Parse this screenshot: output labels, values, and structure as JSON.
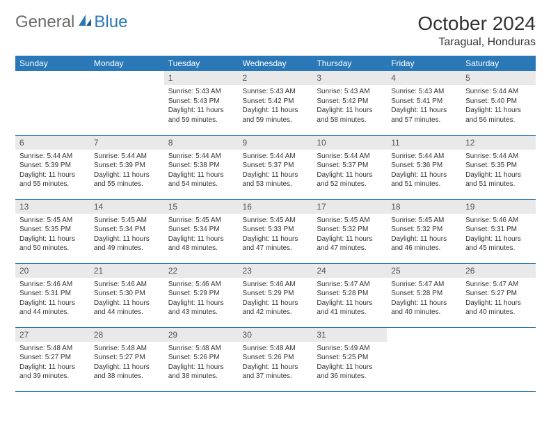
{
  "logo": {
    "part1": "General",
    "part2": "Blue"
  },
  "title": "October 2024",
  "location": "Taragual, Honduras",
  "day_headers": [
    "Sunday",
    "Monday",
    "Tuesday",
    "Wednesday",
    "Thursday",
    "Friday",
    "Saturday"
  ],
  "colors": {
    "header_bg": "#2a78b8",
    "header_text": "#ffffff",
    "daynum_bg": "#e9e9e9",
    "row_border": "#2a78b8",
    "logo_gray": "#6a6a6a",
    "logo_blue": "#2a78b8"
  },
  "weeks": [
    [
      null,
      null,
      {
        "n": "1",
        "sunrise": "Sunrise: 5:43 AM",
        "sunset": "Sunset: 5:43 PM",
        "daylight": "Daylight: 11 hours and 59 minutes."
      },
      {
        "n": "2",
        "sunrise": "Sunrise: 5:43 AM",
        "sunset": "Sunset: 5:42 PM",
        "daylight": "Daylight: 11 hours and 59 minutes."
      },
      {
        "n": "3",
        "sunrise": "Sunrise: 5:43 AM",
        "sunset": "Sunset: 5:42 PM",
        "daylight": "Daylight: 11 hours and 58 minutes."
      },
      {
        "n": "4",
        "sunrise": "Sunrise: 5:43 AM",
        "sunset": "Sunset: 5:41 PM",
        "daylight": "Daylight: 11 hours and 57 minutes."
      },
      {
        "n": "5",
        "sunrise": "Sunrise: 5:44 AM",
        "sunset": "Sunset: 5:40 PM",
        "daylight": "Daylight: 11 hours and 56 minutes."
      }
    ],
    [
      {
        "n": "6",
        "sunrise": "Sunrise: 5:44 AM",
        "sunset": "Sunset: 5:39 PM",
        "daylight": "Daylight: 11 hours and 55 minutes."
      },
      {
        "n": "7",
        "sunrise": "Sunrise: 5:44 AM",
        "sunset": "Sunset: 5:39 PM",
        "daylight": "Daylight: 11 hours and 55 minutes."
      },
      {
        "n": "8",
        "sunrise": "Sunrise: 5:44 AM",
        "sunset": "Sunset: 5:38 PM",
        "daylight": "Daylight: 11 hours and 54 minutes."
      },
      {
        "n": "9",
        "sunrise": "Sunrise: 5:44 AM",
        "sunset": "Sunset: 5:37 PM",
        "daylight": "Daylight: 11 hours and 53 minutes."
      },
      {
        "n": "10",
        "sunrise": "Sunrise: 5:44 AM",
        "sunset": "Sunset: 5:37 PM",
        "daylight": "Daylight: 11 hours and 52 minutes."
      },
      {
        "n": "11",
        "sunrise": "Sunrise: 5:44 AM",
        "sunset": "Sunset: 5:36 PM",
        "daylight": "Daylight: 11 hours and 51 minutes."
      },
      {
        "n": "12",
        "sunrise": "Sunrise: 5:44 AM",
        "sunset": "Sunset: 5:35 PM",
        "daylight": "Daylight: 11 hours and 51 minutes."
      }
    ],
    [
      {
        "n": "13",
        "sunrise": "Sunrise: 5:45 AM",
        "sunset": "Sunset: 5:35 PM",
        "daylight": "Daylight: 11 hours and 50 minutes."
      },
      {
        "n": "14",
        "sunrise": "Sunrise: 5:45 AM",
        "sunset": "Sunset: 5:34 PM",
        "daylight": "Daylight: 11 hours and 49 minutes."
      },
      {
        "n": "15",
        "sunrise": "Sunrise: 5:45 AM",
        "sunset": "Sunset: 5:34 PM",
        "daylight": "Daylight: 11 hours and 48 minutes."
      },
      {
        "n": "16",
        "sunrise": "Sunrise: 5:45 AM",
        "sunset": "Sunset: 5:33 PM",
        "daylight": "Daylight: 11 hours and 47 minutes."
      },
      {
        "n": "17",
        "sunrise": "Sunrise: 5:45 AM",
        "sunset": "Sunset: 5:32 PM",
        "daylight": "Daylight: 11 hours and 47 minutes."
      },
      {
        "n": "18",
        "sunrise": "Sunrise: 5:45 AM",
        "sunset": "Sunset: 5:32 PM",
        "daylight": "Daylight: 11 hours and 46 minutes."
      },
      {
        "n": "19",
        "sunrise": "Sunrise: 5:46 AM",
        "sunset": "Sunset: 5:31 PM",
        "daylight": "Daylight: 11 hours and 45 minutes."
      }
    ],
    [
      {
        "n": "20",
        "sunrise": "Sunrise: 5:46 AM",
        "sunset": "Sunset: 5:31 PM",
        "daylight": "Daylight: 11 hours and 44 minutes."
      },
      {
        "n": "21",
        "sunrise": "Sunrise: 5:46 AM",
        "sunset": "Sunset: 5:30 PM",
        "daylight": "Daylight: 11 hours and 44 minutes."
      },
      {
        "n": "22",
        "sunrise": "Sunrise: 5:46 AM",
        "sunset": "Sunset: 5:29 PM",
        "daylight": "Daylight: 11 hours and 43 minutes."
      },
      {
        "n": "23",
        "sunrise": "Sunrise: 5:46 AM",
        "sunset": "Sunset: 5:29 PM",
        "daylight": "Daylight: 11 hours and 42 minutes."
      },
      {
        "n": "24",
        "sunrise": "Sunrise: 5:47 AM",
        "sunset": "Sunset: 5:28 PM",
        "daylight": "Daylight: 11 hours and 41 minutes."
      },
      {
        "n": "25",
        "sunrise": "Sunrise: 5:47 AM",
        "sunset": "Sunset: 5:28 PM",
        "daylight": "Daylight: 11 hours and 40 minutes."
      },
      {
        "n": "26",
        "sunrise": "Sunrise: 5:47 AM",
        "sunset": "Sunset: 5:27 PM",
        "daylight": "Daylight: 11 hours and 40 minutes."
      }
    ],
    [
      {
        "n": "27",
        "sunrise": "Sunrise: 5:48 AM",
        "sunset": "Sunset: 5:27 PM",
        "daylight": "Daylight: 11 hours and 39 minutes."
      },
      {
        "n": "28",
        "sunrise": "Sunrise: 5:48 AM",
        "sunset": "Sunset: 5:27 PM",
        "daylight": "Daylight: 11 hours and 38 minutes."
      },
      {
        "n": "29",
        "sunrise": "Sunrise: 5:48 AM",
        "sunset": "Sunset: 5:26 PM",
        "daylight": "Daylight: 11 hours and 38 minutes."
      },
      {
        "n": "30",
        "sunrise": "Sunrise: 5:48 AM",
        "sunset": "Sunset: 5:26 PM",
        "daylight": "Daylight: 11 hours and 37 minutes."
      },
      {
        "n": "31",
        "sunrise": "Sunrise: 5:49 AM",
        "sunset": "Sunset: 5:25 PM",
        "daylight": "Daylight: 11 hours and 36 minutes."
      },
      null,
      null
    ]
  ]
}
